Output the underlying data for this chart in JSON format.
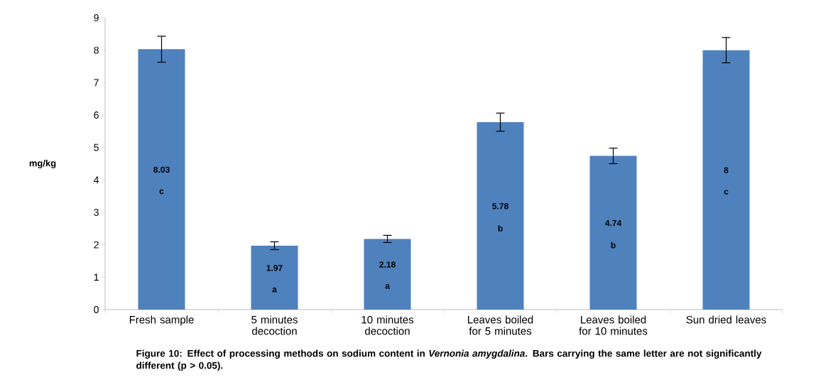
{
  "chart_data": {
    "type": "bar",
    "categories": [
      "Fresh sample",
      "5 minutes decoction",
      "10 minutes decoction",
      "Leaves boiled for 5 minutes",
      "Leaves boiled for 10 minutes",
      "Sun dried leaves"
    ],
    "values": [
      8.03,
      1.97,
      2.18,
      5.78,
      4.74,
      8
    ],
    "errors": [
      0.4,
      0.12,
      0.11,
      0.28,
      0.24,
      0.39
    ],
    "value_labels": [
      "8.03",
      "1.97",
      "2.18",
      "5.78",
      "4.74",
      "8"
    ],
    "color": "#4f81bd",
    "ylabel": "mg/kg",
    "ylim": [
      0,
      9
    ],
    "yticks": [
      0,
      1,
      2,
      3,
      4,
      5,
      6,
      7,
      8,
      9
    ],
    "annotations": [
      "c",
      "a",
      "a",
      "b",
      "b",
      "c",
      "Figure 10: Effect of processing methods on sodium content in *Vernonia amygdalina*. Bars carrying the same letter are not significantly different (p > 0.05)."
    ]
  }
}
